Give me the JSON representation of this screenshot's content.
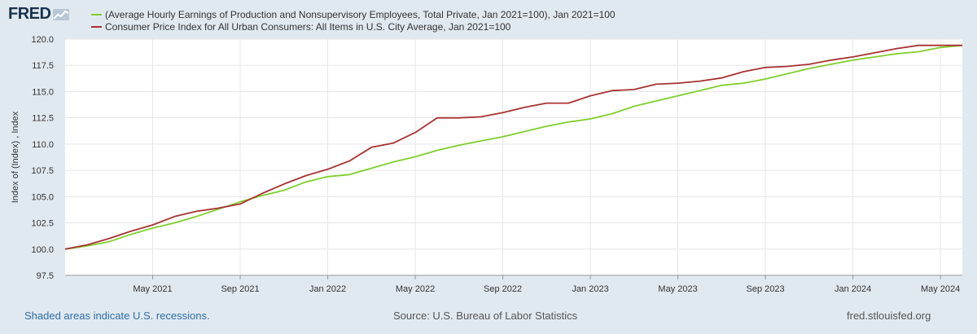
{
  "header": {
    "logo_text": "FRED",
    "logo_icon": "chart-line-icon"
  },
  "chart_data": {
    "type": "line",
    "title": "",
    "xlabel": "",
    "ylabel": "Index of (Index) , Index",
    "ylim": [
      97.5,
      120.0
    ],
    "yticks": [
      "97.5",
      "100.0",
      "102.5",
      "105.0",
      "107.5",
      "110.0",
      "112.5",
      "115.0",
      "117.5",
      "120.0"
    ],
    "xticks": [
      "May 2021",
      "Sep 2021",
      "Jan 2022",
      "May 2022",
      "Sep 2022",
      "Jan 2023",
      "May 2023",
      "Sep 2023",
      "Jan 2024",
      "May 2024"
    ],
    "x": [
      "2021-01",
      "2021-02",
      "2021-03",
      "2021-04",
      "2021-05",
      "2021-06",
      "2021-07",
      "2021-08",
      "2021-09",
      "2021-10",
      "2021-11",
      "2021-12",
      "2022-01",
      "2022-02",
      "2022-03",
      "2022-04",
      "2022-05",
      "2022-06",
      "2022-07",
      "2022-08",
      "2022-09",
      "2022-10",
      "2022-11",
      "2022-12",
      "2023-01",
      "2023-02",
      "2023-03",
      "2023-04",
      "2023-05",
      "2023-06",
      "2023-07",
      "2023-08",
      "2023-09",
      "2023-10",
      "2023-11",
      "2023-12",
      "2024-01",
      "2024-02",
      "2024-03",
      "2024-04",
      "2024-05",
      "2024-06"
    ],
    "grid": true,
    "legend_position": "top-left",
    "series": [
      {
        "name": "(Average Hourly Earnings of Production and Nonsupervisory Employees, Total Private, Jan 2021=100), Jan 2021=100",
        "color": "#7fcf2c",
        "values": [
          100.0,
          100.3,
          100.7,
          101.4,
          102.0,
          102.5,
          103.1,
          103.8,
          104.5,
          105.1,
          105.6,
          106.4,
          106.9,
          107.1,
          107.7,
          108.3,
          108.8,
          109.4,
          109.9,
          110.3,
          110.7,
          111.2,
          111.7,
          112.1,
          112.4,
          112.9,
          113.6,
          114.1,
          114.6,
          115.1,
          115.6,
          115.8,
          116.2,
          116.7,
          117.2,
          117.6,
          118.0,
          118.3,
          118.6,
          118.8,
          119.2,
          119.4
        ]
      },
      {
        "name": "Consumer Price Index for All Urban Consumers: All Items in U.S. City Average, Jan 2021=100",
        "color": "#a83232",
        "values": [
          100.0,
          100.4,
          101.0,
          101.7,
          102.3,
          103.1,
          103.6,
          103.9,
          104.3,
          105.3,
          106.2,
          107.0,
          107.6,
          108.4,
          109.7,
          110.1,
          111.1,
          112.5,
          112.5,
          112.6,
          113.0,
          113.5,
          113.9,
          113.9,
          114.6,
          115.1,
          115.2,
          115.7,
          115.8,
          116.0,
          116.3,
          116.9,
          117.3,
          117.4,
          117.6,
          118.0,
          118.3,
          118.7,
          119.1,
          119.4,
          119.4,
          119.4
        ]
      }
    ]
  },
  "footer": {
    "note": "Shaded areas indicate U.S. recessions.",
    "source": "Source: U.S. Bureau of Labor Statistics",
    "site": "fred.stlouisfed.org"
  }
}
